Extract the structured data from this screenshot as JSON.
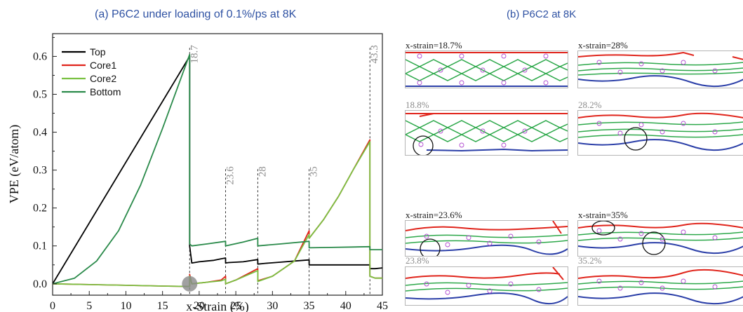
{
  "chart_data": {
    "type": "line",
    "title": "(a) P6C2 under loading of 0.1%/ps at 8K",
    "xlabel": "x-Strain (%)",
    "ylabel": "VPE (eV/atom)",
    "xlim": [
      0,
      45
    ],
    "ylim": [
      -0.03,
      0.66
    ],
    "xticks": [
      0,
      5,
      10,
      15,
      20,
      25,
      30,
      35,
      40,
      45
    ],
    "yticks": [
      0.0,
      0.1,
      0.2,
      0.3,
      0.4,
      0.5,
      0.6
    ],
    "ytick_labels": [
      "0.0",
      "0.1",
      "0.2",
      "0.3",
      "0.4",
      "0.5",
      "0.6"
    ],
    "legend_position": "top-left",
    "grid": false,
    "series": [
      {
        "name": "Top",
        "color": "#000000",
        "x": [
          0,
          18.7,
          18.7,
          19,
          20,
          21,
          22,
          23,
          23.6,
          23.6,
          24,
          26,
          28,
          28,
          29,
          31,
          33,
          35,
          35,
          37,
          39,
          41,
          43.3,
          43.3,
          44,
          45
        ],
        "y": [
          0,
          0.6,
          0.1,
          0.055,
          0.058,
          0.06,
          0.062,
          0.066,
          0.068,
          0.055,
          0.056,
          0.058,
          0.064,
          0.052,
          0.054,
          0.057,
          0.06,
          0.063,
          0.05,
          0.05,
          0.05,
          0.05,
          0.05,
          0.04,
          0.04,
          0.042
        ]
      },
      {
        "name": "Core1",
        "color": "#e0241b",
        "x": [
          0,
          5,
          10,
          15,
          18.7,
          18.7,
          19,
          21,
          23,
          23.6,
          23.6,
          25,
          28,
          28,
          30,
          33,
          35,
          35,
          37,
          39,
          41,
          43.3,
          43.3,
          44,
          45
        ],
        "y": [
          0,
          -0.002,
          -0.004,
          -0.006,
          -0.007,
          0.025,
          0.0,
          0.004,
          0.01,
          0.02,
          0.0,
          0.01,
          0.04,
          0.008,
          0.02,
          0.06,
          0.14,
          0.12,
          0.17,
          0.23,
          0.3,
          0.38,
          0.02,
          0.015,
          0.015
        ]
      },
      {
        "name": "Core2",
        "color": "#7ac142",
        "x": [
          0,
          5,
          10,
          15,
          18.7,
          18.7,
          19,
          21,
          23,
          23.6,
          23.6,
          25,
          28,
          28,
          30,
          33,
          35,
          35,
          37,
          39,
          41,
          43.3,
          43.3,
          44,
          45
        ],
        "y": [
          0,
          -0.002,
          -0.004,
          -0.006,
          -0.007,
          0.02,
          0.0,
          0.004,
          0.008,
          0.012,
          0.0,
          0.01,
          0.035,
          0.006,
          0.02,
          0.06,
          0.13,
          0.12,
          0.17,
          0.23,
          0.3,
          0.375,
          0.02,
          0.015,
          0.015
        ]
      },
      {
        "name": "Bottom",
        "color": "#2a8a4a",
        "x": [
          0,
          3,
          6,
          9,
          12,
          15,
          18.7,
          18.7,
          19,
          21,
          23.6,
          23.6,
          26,
          28,
          28,
          31,
          35,
          35,
          38,
          41,
          43.3,
          43.3,
          44,
          45
        ],
        "y": [
          0,
          0.015,
          0.06,
          0.14,
          0.26,
          0.41,
          0.605,
          0.105,
          0.1,
          0.105,
          0.112,
          0.1,
          0.11,
          0.12,
          0.1,
          0.105,
          0.112,
          0.095,
          0.096,
          0.097,
          0.098,
          0.09,
          0.09,
          0.09
        ]
      }
    ],
    "event_lines": [
      {
        "x": 18.7,
        "label": "18.7",
        "label_y": 0.63
      },
      {
        "x": 23.6,
        "label": "23.6",
        "label_y": 0.31
      },
      {
        "x": 28,
        "label": "28",
        "label_y": 0.31
      },
      {
        "x": 35,
        "label": "35",
        "label_y": 0.31
      },
      {
        "x": 43.3,
        "label": "43.3",
        "label_y": 0.63
      }
    ],
    "highlight": {
      "x": 18.7,
      "y": 0.0
    }
  },
  "panel_b": {
    "title": "(b) P6C2 at 8K",
    "snapshots": [
      {
        "label": "x-strain=18.7%",
        "style": "black"
      },
      {
        "label": "18.8%",
        "style": "gray"
      },
      {
        "label": "x-strain=23.6%",
        "style": "black"
      },
      {
        "label": "23.8%",
        "style": "gray"
      },
      {
        "label": "x-strain=28%",
        "style": "black"
      },
      {
        "label": "28.2%",
        "style": "gray"
      },
      {
        "label": "x-strain=35%",
        "style": "black"
      },
      {
        "label": "35.2%",
        "style": "gray"
      }
    ]
  }
}
